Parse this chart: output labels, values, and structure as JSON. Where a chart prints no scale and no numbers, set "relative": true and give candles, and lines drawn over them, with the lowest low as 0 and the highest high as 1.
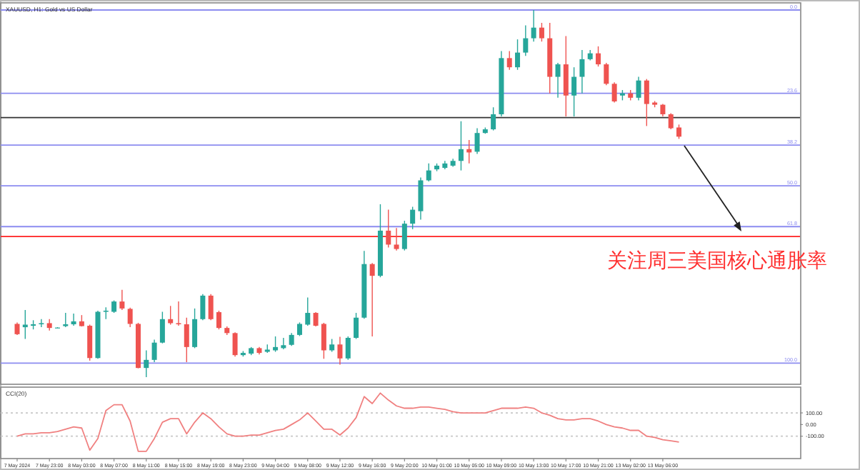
{
  "chart_data": [
    {
      "type": "candlestick",
      "title": "XAUUSD, H1: Gold vs US Dollar",
      "relative": true,
      "categories": [
        null,
        null,
        null,
        null,
        null,
        null,
        null,
        null,
        null,
        null,
        null,
        null,
        null,
        null,
        null,
        null,
        null,
        null,
        null,
        null,
        null,
        null,
        null,
        null,
        null,
        null,
        null,
        null,
        null,
        null,
        null,
        null,
        null,
        null,
        null,
        null,
        null,
        null,
        null,
        null,
        null,
        null,
        null,
        null,
        null,
        null,
        null,
        null,
        null,
        null,
        null,
        null,
        null,
        null,
        null,
        null,
        null,
        null,
        null,
        null,
        null,
        null,
        null,
        null,
        null,
        null,
        null,
        null,
        null,
        null,
        null,
        null,
        null,
        null,
        null,
        null,
        null,
        null,
        null,
        null,
        null,
        null,
        null
      ],
      "ohlc": [
        [
          0.145,
          0.149,
          0.115,
          0.117
        ],
        [
          0.136,
          0.183,
          0.104,
          0.143
        ],
        [
          0.14,
          0.155,
          0.13,
          0.144
        ],
        [
          0.144,
          0.158,
          0.136,
          0.147
        ],
        [
          0.147,
          0.158,
          0.127,
          0.134
        ],
        [
          0.135,
          0.136,
          0.134,
          0.135
        ],
        [
          0.139,
          0.175,
          0.136,
          0.144
        ],
        [
          0.144,
          0.173,
          0.14,
          0.152
        ],
        [
          0.152,
          0.169,
          0.138,
          0.139
        ],
        [
          0.14,
          0.143,
          0.045,
          0.052
        ],
        [
          0.052,
          0.181,
          0.05,
          0.178
        ],
        [
          0.178,
          0.19,
          0.158,
          0.181
        ],
        [
          0.178,
          0.209,
          0.175,
          0.206
        ],
        [
          0.206,
          0.238,
          0.183,
          0.187
        ],
        [
          0.186,
          0.189,
          0.136,
          0.145
        ],
        [
          0.145,
          0.148,
          0.024,
          0.025
        ],
        [
          0.025,
          0.073,
          0.0,
          0.047
        ],
        [
          0.047,
          0.102,
          0.041,
          0.094
        ],
        [
          0.094,
          0.178,
          0.092,
          0.158
        ],
        [
          0.158,
          0.194,
          0.143,
          0.147
        ],
        [
          0.147,
          0.206,
          0.14,
          0.144
        ],
        [
          0.144,
          0.162,
          0.041,
          0.082
        ],
        [
          0.082,
          0.187,
          0.079,
          0.158
        ],
        [
          0.158,
          0.226,
          0.155,
          0.222
        ],
        [
          0.222,
          0.226,
          0.155,
          0.158
        ],
        [
          0.177,
          0.181,
          0.13,
          0.134
        ],
        [
          0.134,
          0.138,
          0.115,
          0.12
        ],
        [
          0.12,
          0.122,
          0.056,
          0.06
        ],
        [
          0.06,
          0.071,
          0.056,
          0.066
        ],
        [
          0.064,
          0.082,
          0.06,
          0.079
        ],
        [
          0.079,
          0.082,
          0.062,
          0.066
        ],
        [
          0.069,
          0.089,
          0.066,
          0.075
        ],
        [
          0.073,
          0.111,
          0.069,
          0.082
        ],
        [
          0.079,
          0.107,
          0.076,
          0.087
        ],
        [
          0.088,
          0.12,
          0.085,
          0.115
        ],
        [
          0.115,
          0.149,
          0.112,
          0.145
        ],
        [
          0.143,
          0.217,
          0.14,
          0.175
        ],
        [
          0.175,
          0.177,
          0.138,
          0.14
        ],
        [
          0.145,
          0.148,
          0.05,
          0.073
        ],
        [
          0.073,
          0.104,
          0.069,
          0.089
        ],
        [
          0.089,
          0.11,
          0.034,
          0.051
        ],
        [
          0.051,
          0.111,
          0.047,
          0.107
        ],
        [
          0.107,
          0.175,
          0.104,
          0.162
        ],
        [
          0.162,
          0.344,
          0.159,
          0.308
        ],
        [
          0.308,
          0.311,
          0.111,
          0.276
        ],
        [
          0.276,
          0.471,
          0.272,
          0.399
        ],
        [
          0.399,
          0.456,
          0.353,
          0.361
        ],
        [
          0.361,
          0.406,
          0.345,
          0.349
        ],
        [
          0.349,
          0.426,
          0.345,
          0.418
        ],
        [
          0.418,
          0.464,
          0.403,
          0.456
        ],
        [
          0.452,
          0.544,
          0.429,
          0.536
        ],
        [
          0.536,
          0.582,
          0.533,
          0.563
        ],
        [
          0.566,
          0.582,
          0.561,
          0.576
        ],
        [
          0.57,
          0.589,
          0.566,
          0.582
        ],
        [
          0.576,
          0.595,
          0.573,
          0.589
        ],
        [
          0.589,
          0.697,
          0.563,
          0.621
        ],
        [
          0.621,
          0.646,
          0.582,
          0.612
        ],
        [
          0.614,
          0.678,
          0.608,
          0.665
        ],
        [
          0.665,
          0.68,
          0.663,
          0.675
        ],
        [
          0.675,
          0.735,
          0.672,
          0.716
        ],
        [
          0.716,
          0.888,
          0.71,
          0.869
        ],
        [
          0.869,
          0.888,
          0.837,
          0.844
        ],
        [
          0.844,
          0.92,
          0.837,
          0.884
        ],
        [
          0.884,
          0.958,
          0.875,
          0.923
        ],
        [
          0.923,
          1.0,
          0.914,
          0.952
        ],
        [
          0.952,
          0.965,
          0.914,
          0.923
        ],
        [
          0.923,
          0.965,
          0.773,
          0.818
        ],
        [
          0.818,
          0.856,
          0.761,
          0.852
        ],
        [
          0.852,
          0.929,
          0.71,
          0.767
        ],
        [
          0.767,
          0.844,
          0.71,
          0.818
        ],
        [
          0.818,
          0.891,
          0.773,
          0.866
        ],
        [
          0.866,
          0.891,
          0.863,
          0.882
        ],
        [
          0.882,
          0.901,
          0.846,
          0.852
        ],
        [
          0.852,
          0.856,
          0.795,
          0.799
        ],
        [
          0.799,
          0.803,
          0.748,
          0.751
        ],
        [
          0.767,
          0.782,
          0.754,
          0.773
        ],
        [
          0.773,
          0.782,
          0.754,
          0.761
        ],
        [
          0.761,
          0.818,
          0.754,
          0.808
        ],
        [
          0.808,
          0.812,
          0.684,
          0.744
        ],
        [
          0.748,
          0.752,
          0.735,
          0.742
        ],
        [
          0.742,
          0.744,
          0.71,
          0.716
        ],
        [
          0.716,
          0.719,
          0.675,
          0.678
        ],
        [
          0.68,
          0.688,
          0.649,
          0.655
        ]
      ],
      "ref_lines": [
        {
          "axis": "y",
          "value": 1.0,
          "color": "#8c8cf0"
        },
        {
          "axis": "y",
          "value": 0.773,
          "color": "#8c8cf0"
        },
        {
          "axis": "y",
          "value": 0.707,
          "color": "#333333"
        },
        {
          "axis": "y",
          "value": 0.632,
          "color": "#8c8cf0"
        },
        {
          "axis": "y",
          "value": 0.521,
          "color": "#8c8cf0"
        },
        {
          "axis": "y",
          "value": 0.41,
          "color": "#8c8cf0"
        },
        {
          "axis": "y",
          "value": 0.383,
          "color": "#ff2020"
        },
        {
          "axis": "y",
          "value": 0.038,
          "color": "#8c8cf0"
        }
      ],
      "annotations": [
        "关注周三美国核心通胀率",
        {
          "text": "0.0",
          "y": 1.0
        },
        {
          "text": "23.6",
          "y": 0.773
        },
        {
          "text": "38.2",
          "y": 0.632
        },
        {
          "text": "50.0",
          "y": 0.521
        },
        {
          "text": "61.8",
          "y": 0.41
        },
        {
          "text": "100.0",
          "y": 0.038
        }
      ]
    },
    {
      "type": "line",
      "title": "CCI(20)",
      "ylim": [
        -292,
        321
      ],
      "yticks": [
        {
          "value": 100,
          "label": "100.00"
        },
        {
          "value": 0,
          "label": "0.00"
        },
        {
          "value": -100,
          "label": "-100.00"
        }
      ],
      "categories": [
        "7 May 2024",
        null,
        null,
        null,
        "7 May 23:00",
        null,
        null,
        null,
        "8 May 03:00",
        null,
        null,
        null,
        "8 May 07:00",
        null,
        null,
        null,
        "8 May 11:00",
        null,
        null,
        null,
        "8 May 15:00",
        null,
        null,
        null,
        "8 May 19:00",
        null,
        null,
        null,
        "8 May 23:00",
        null,
        null,
        null,
        "9 May 04:00",
        null,
        null,
        null,
        "9 May 08:00",
        null,
        null,
        null,
        "9 May 12:00",
        null,
        null,
        null,
        "9 May 16:00",
        null,
        null,
        null,
        "9 May 20:00",
        null,
        null,
        null,
        "10 May 01:00",
        null,
        null,
        null,
        "10 May 05:00",
        null,
        null,
        null,
        "10 May 09:00",
        null,
        null,
        null,
        "10 May 13:00",
        null,
        null,
        null,
        "10 May 17:00",
        null,
        null,
        null,
        "10 May 21:00",
        null,
        null,
        null,
        "13 May 02:00",
        null,
        null,
        null,
        "13 May 06:00",
        null,
        null
      ],
      "series": [
        {
          "color": "#f08080",
          "values": [
            -100,
            -80,
            -80,
            -70,
            -70,
            -60,
            -40,
            -20,
            -30,
            -220,
            -120,
            120,
            170,
            170,
            30,
            -230,
            -230,
            -120,
            20,
            50,
            50,
            -80,
            20,
            100,
            50,
            -20,
            -80,
            -100,
            -100,
            -90,
            -90,
            -70,
            -50,
            -40,
            0,
            40,
            100,
            30,
            -40,
            -40,
            -90,
            -30,
            60,
            240,
            180,
            270,
            210,
            160,
            140,
            140,
            150,
            150,
            140,
            130,
            110,
            100,
            100,
            100,
            100,
            120,
            140,
            140,
            140,
            150,
            140,
            100,
            80,
            50,
            40,
            40,
            50,
            50,
            30,
            0,
            -20,
            -30,
            -50,
            -50,
            -100,
            -110,
            -130,
            -140,
            -150
          ]
        }
      ],
      "ref_lines": [
        {
          "axis": "y",
          "value": 100,
          "color": "#c8c8c8",
          "line_style": "dotted"
        },
        {
          "axis": "y",
          "value": -100,
          "color": "#c8c8c8",
          "line_style": "dotted"
        }
      ]
    }
  ]
}
